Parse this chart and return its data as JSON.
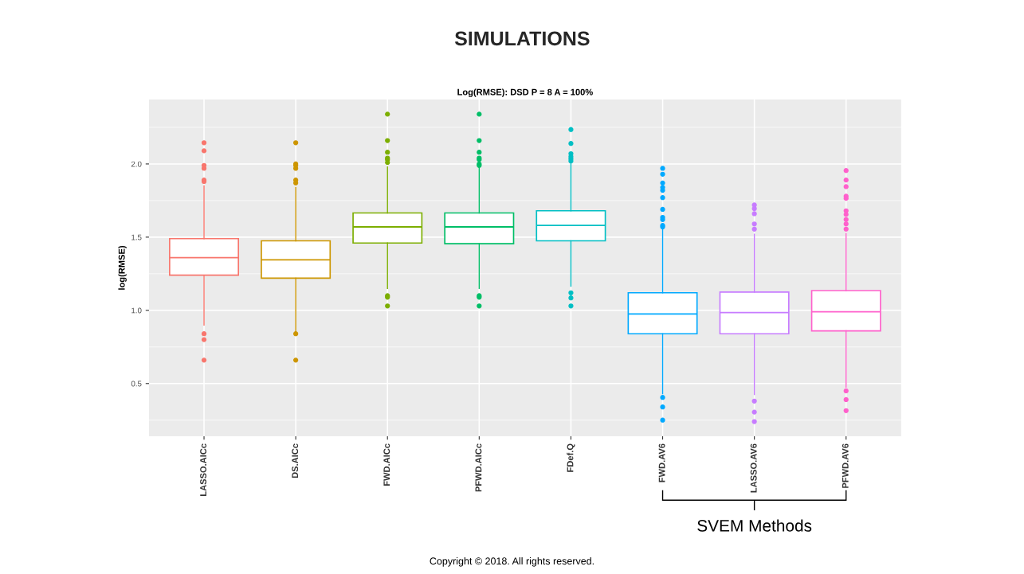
{
  "chart_data": {
    "type": "box",
    "title": "SIMULATIONS",
    "subtitle": "Log(RMSE): DSD P = 8 A = 100%",
    "ylabel": "log(RMSE)",
    "categories": [
      "LASSO.AICc",
      "DS.AICc",
      "FWD.AICc",
      "PFWD.AICc",
      "FDef.Q",
      "FWD.AV6",
      "LASSO.AV6",
      "PFWD.AV6"
    ],
    "colors": [
      "#f8766d",
      "#cd9600",
      "#7cae00",
      "#00be67",
      "#00bfc4",
      "#00a9ff",
      "#c77cff",
      "#ff61cc"
    ],
    "boxes": [
      {
        "low": 0.9,
        "q1": 1.24,
        "median": 1.36,
        "q3": 1.49,
        "high": 1.85,
        "outliers": [
          2.145,
          2.09,
          1.99,
          1.97,
          1.89,
          1.88,
          0.84,
          0.8,
          0.66
        ]
      },
      {
        "low": 0.85,
        "q1": 1.22,
        "median": 1.345,
        "q3": 1.475,
        "high": 1.84,
        "outliers": [
          2.145,
          2.0,
          1.99,
          1.97,
          1.89,
          1.87,
          0.84,
          0.66
        ]
      },
      {
        "low": 1.15,
        "q1": 1.46,
        "median": 1.57,
        "q3": 1.665,
        "high": 1.98,
        "outliers": [
          2.34,
          2.16,
          2.08,
          2.04,
          2.03,
          2.01,
          1.1,
          1.09,
          1.03
        ]
      },
      {
        "low": 1.15,
        "q1": 1.455,
        "median": 1.57,
        "q3": 1.665,
        "high": 1.98,
        "outliers": [
          2.34,
          2.16,
          2.08,
          2.04,
          2.03,
          2.0,
          1.99,
          1.1,
          1.09,
          1.03
        ]
      },
      {
        "low": 1.165,
        "q1": 1.475,
        "median": 1.58,
        "q3": 1.68,
        "high": 2.0,
        "outliers": [
          2.235,
          2.14,
          2.07,
          2.05,
          2.035,
          2.02,
          1.12,
          1.085,
          1.03
        ]
      },
      {
        "low": 0.43,
        "q1": 0.84,
        "median": 0.975,
        "q3": 1.12,
        "high": 1.55,
        "outliers": [
          1.97,
          1.93,
          1.87,
          1.84,
          1.82,
          1.77,
          1.69,
          1.635,
          1.62,
          1.58,
          1.57,
          0.405,
          0.34,
          0.25
        ]
      },
      {
        "low": 0.425,
        "q1": 0.84,
        "median": 0.985,
        "q3": 1.125,
        "high": 1.52,
        "outliers": [
          1.72,
          1.695,
          1.66,
          1.59,
          1.555,
          0.38,
          0.305,
          0.24
        ]
      },
      {
        "low": 0.475,
        "q1": 0.86,
        "median": 0.99,
        "q3": 1.135,
        "high": 1.525,
        "outliers": [
          1.955,
          1.89,
          1.845,
          1.78,
          1.765,
          1.68,
          1.655,
          1.62,
          1.59,
          1.555,
          0.45,
          0.39,
          0.315
        ]
      }
    ],
    "ylim": [
      0.14,
      2.44
    ],
    "yticks": [
      0.5,
      {
        "value": 1,
        "label": "1.0"
      },
      1.5,
      {
        "value": 2,
        "label": "2.0"
      }
    ],
    "grid": true,
    "annotations": [
      "SVEM Methods",
      "Copyright © 2018. All rights reserved."
    ]
  }
}
